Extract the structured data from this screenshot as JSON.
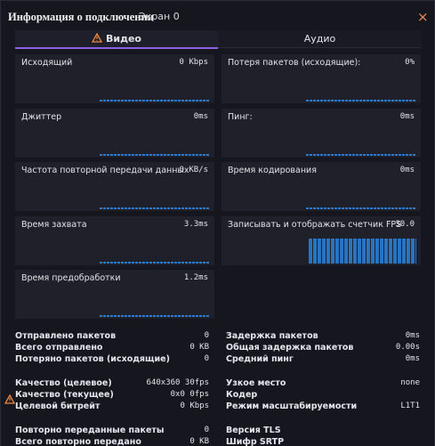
{
  "window": {
    "title": "Информация о подключении",
    "subtitle": "Экран 0",
    "close": "×"
  },
  "tabs": [
    "Видео",
    "Аудио"
  ],
  "panels": [
    {
      "label": "Исходящий",
      "value": "0 Kbps"
    },
    {
      "label": "Потеря пакетов (исходящие):",
      "value": "0%"
    },
    {
      "label": "Джиттер",
      "value": "0ms"
    },
    {
      "label": "Пинг:",
      "value": "0ms"
    },
    {
      "label": "Частота повторной передачи данных",
      "value": "0 KB/s"
    },
    {
      "label": "Время кодирования",
      "value": "0ms"
    },
    {
      "label": "Время захвата",
      "value": "3.3ms"
    },
    {
      "label": "Записывать и отображать счетчик FPS",
      "value": "30.0"
    },
    {
      "label": "Время предобработки",
      "value": "1.2ms"
    }
  ],
  "stats": {
    "left": [
      [
        {
          "label": "Отправлено пакетов",
          "value": "0"
        },
        {
          "label": "Всего отправлено",
          "value": "0 KB"
        },
        {
          "label": "Потеряно пакетов (исходящие)",
          "value": "0"
        }
      ],
      [
        {
          "label": "Качество (целевое)",
          "value": "640x360 30fps"
        },
        {
          "label": "Качество (текущее)",
          "value": "0x0 0fps"
        },
        {
          "label": "Целевой битрейт",
          "value": "0 Kbps"
        }
      ],
      [
        {
          "label": "Повторно переданные пакеты",
          "value": "0"
        },
        {
          "label": "Всего повторно передано",
          "value": "0 KB"
        }
      ]
    ],
    "right": [
      [
        {
          "label": "Задержка пакетов",
          "value": "0ms"
        },
        {
          "label": "Общая задержка пакетов",
          "value": "0.00s"
        },
        {
          "label": "Средний пинг",
          "value": "0ms"
        }
      ],
      [
        {
          "label": "Узкое место",
          "value": "none"
        },
        {
          "label": "Кодер"
        },
        {
          "label": "Режим масштабируемости",
          "value": "L1T1"
        }
      ],
      [
        {
          "label": "Версия TLS"
        },
        {
          "label": "Шифр SRTP"
        }
      ]
    ]
  }
}
